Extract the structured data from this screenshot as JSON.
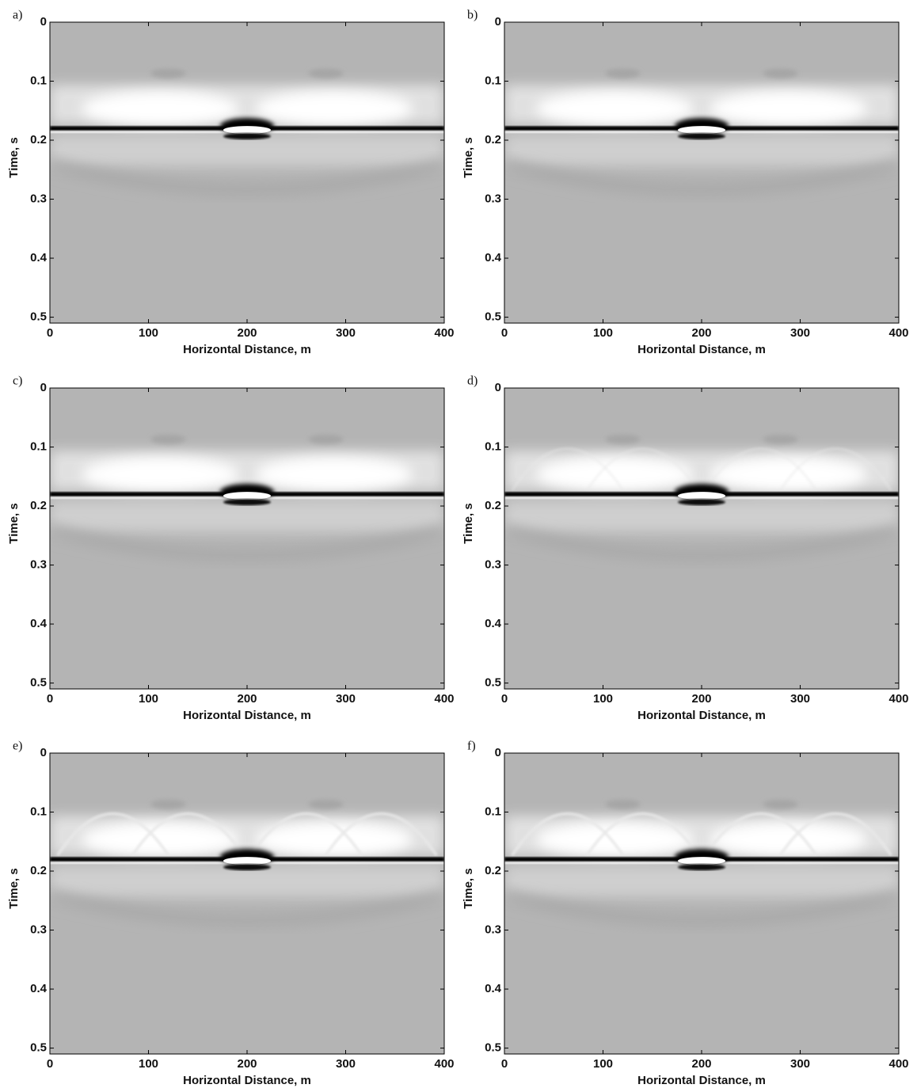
{
  "chart_data": [
    {
      "type": "image",
      "label": "a)",
      "xlabel": "Horizontal Distance, m",
      "ylabel": "Time, s",
      "xlim": [
        0,
        400
      ],
      "ylim": [
        0,
        0.51
      ],
      "xticks": [
        0,
        100,
        200,
        300,
        400
      ],
      "yticks": [
        0,
        0.1,
        0.2,
        0.3,
        0.4,
        0.5
      ]
    },
    {
      "type": "image",
      "label": "b)",
      "xlabel": "Horizontal Distance, m",
      "ylabel": "Time, s",
      "xlim": [
        0,
        400
      ],
      "ylim": [
        0,
        0.51
      ],
      "xticks": [
        0,
        100,
        200,
        300,
        400
      ],
      "yticks": [
        0,
        0.1,
        0.2,
        0.3,
        0.4,
        0.5
      ]
    },
    {
      "type": "image",
      "label": "c)",
      "xlabel": "Horizontal Distance, m",
      "ylabel": "Time, s",
      "xlim": [
        0,
        400
      ],
      "ylim": [
        0,
        0.51
      ],
      "xticks": [
        0,
        100,
        200,
        300,
        400
      ],
      "yticks": [
        0,
        0.1,
        0.2,
        0.3,
        0.4,
        0.5
      ]
    },
    {
      "type": "image",
      "label": "d)",
      "xlabel": "Horizontal Distance, m",
      "ylabel": "Time, s",
      "xlim": [
        0,
        400
      ],
      "ylim": [
        0,
        0.51
      ],
      "xticks": [
        0,
        100,
        200,
        300,
        400
      ],
      "yticks": [
        0,
        0.1,
        0.2,
        0.3,
        0.4,
        0.5
      ]
    },
    {
      "type": "image",
      "label": "e)",
      "xlabel": "Horizontal Distance, m",
      "ylabel": "Time, s",
      "xlim": [
        0,
        400
      ],
      "ylim": [
        0,
        0.51
      ],
      "xticks": [
        0,
        100,
        200,
        300,
        400
      ],
      "yticks": [
        0,
        0.1,
        0.2,
        0.3,
        0.4,
        0.5
      ]
    },
    {
      "type": "image",
      "label": "f)",
      "xlabel": "Horizontal Distance, m",
      "ylabel": "Time, s",
      "xlim": [
        0,
        400
      ],
      "ylim": [
        0,
        0.51
      ],
      "xticks": [
        0,
        100,
        200,
        300,
        400
      ],
      "yticks": [
        0,
        0.1,
        0.2,
        0.3,
        0.4,
        0.5
      ]
    }
  ]
}
